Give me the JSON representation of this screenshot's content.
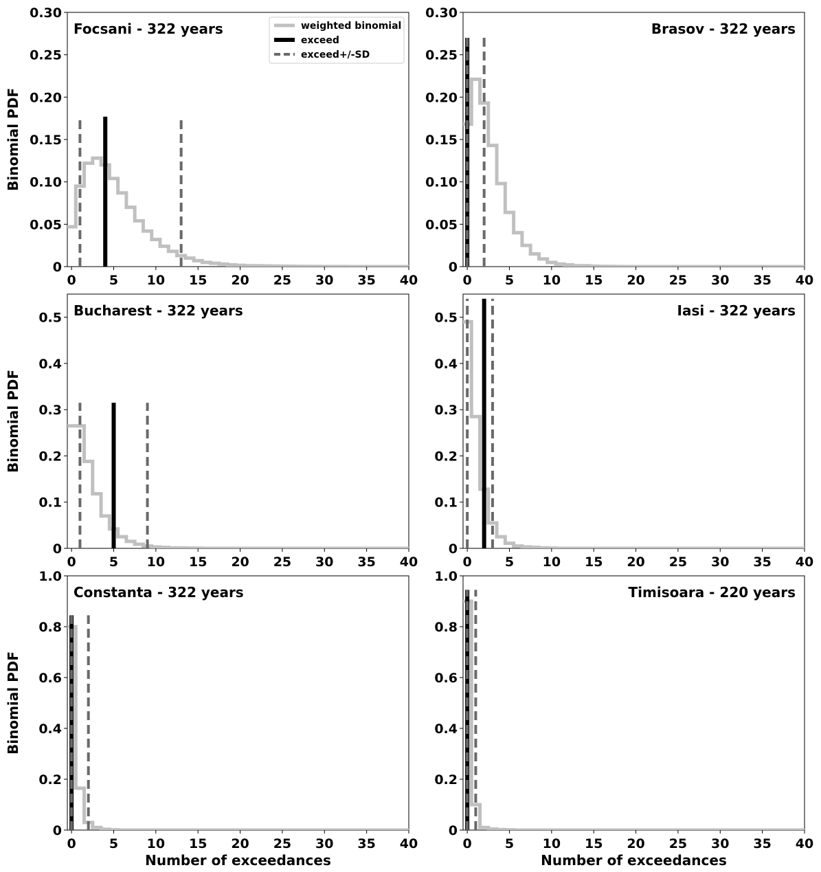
{
  "figure": {
    "ylabel": "Binomial PDF",
    "xlabel": "Number of exceedances"
  },
  "legend": {
    "entries": [
      {
        "label": "weighted binomial",
        "style": "solid",
        "color": "#c0c0c0"
      },
      {
        "label": "exceed",
        "style": "solid",
        "color": "#000000"
      },
      {
        "label": "exceed+/-SD",
        "style": "dashed",
        "color": "#696969"
      }
    ]
  },
  "colors": {
    "binomial": "#c0c0c0",
    "exceed": "#000000",
    "sd": "#696969"
  },
  "chart_data": [
    {
      "type": "line",
      "title": "Focsani - 322 years",
      "title_position": "top-left",
      "legend_position": "top-right",
      "xlabel": "",
      "ylabel": "Binomial PDF",
      "xlim": [
        -0.5,
        40
      ],
      "ylim": [
        0,
        0.3
      ],
      "xticks": [
        0,
        5,
        10,
        15,
        20,
        25,
        30,
        35,
        40
      ],
      "xtick_labels": [
        "0",
        "5",
        "10",
        "15",
        "20",
        "25",
        "30",
        "35",
        "40"
      ],
      "yticks": [
        0,
        0.05,
        0.1,
        0.15,
        0.2,
        0.25,
        0.3
      ],
      "ytick_labels": [
        "0",
        "0.05",
        "0.10",
        "0.15",
        "0.20",
        "0.25",
        "0.30"
      ],
      "series": [
        {
          "name": "weighted binomial",
          "style": "steps-mid",
          "x": [
            0,
            1,
            2,
            3,
            4,
            5,
            6,
            7,
            8,
            9,
            10,
            11,
            12,
            13,
            14,
            15,
            16,
            17,
            18,
            19,
            20,
            21,
            22,
            23,
            24,
            25,
            26,
            27,
            28,
            29,
            30,
            31,
            32,
            33,
            34,
            35,
            36,
            37,
            38,
            39,
            40
          ],
          "y": [
            0.047,
            0.095,
            0.122,
            0.128,
            0.12,
            0.104,
            0.087,
            0.07,
            0.054,
            0.042,
            0.032,
            0.024,
            0.018,
            0.013,
            0.01,
            0.007,
            0.005,
            0.004,
            0.003,
            0.002,
            0.0015,
            0.001,
            0.001,
            0.0008,
            0.0006,
            0.0005,
            0.0004,
            0.0003,
            0.0002,
            0.0002,
            0.0001,
            0.0001,
            0.0001,
            0,
            0,
            0,
            0,
            0,
            0,
            0,
            0
          ]
        },
        {
          "name": "exceed",
          "x": [
            4
          ],
          "y_top": 0.177
        },
        {
          "name": "exceed+/-SD",
          "x": [
            1,
            13
          ],
          "y_top": 0.174
        }
      ]
    },
    {
      "type": "line",
      "title": "Brasov - 322 years",
      "title_position": "top-right",
      "xlabel": "",
      "ylabel": "",
      "xlim": [
        -0.5,
        40
      ],
      "ylim": [
        0,
        0.3
      ],
      "xticks": [
        0,
        5,
        10,
        15,
        20,
        25,
        30,
        35,
        40
      ],
      "xtick_labels": [
        "0",
        "5",
        "10",
        "15",
        "20",
        "25",
        "30",
        "35",
        "40"
      ],
      "yticks": [
        0,
        0.05,
        0.1,
        0.15,
        0.2,
        0.25,
        0.3
      ],
      "ytick_labels": [
        "0",
        "0.05",
        "0.10",
        "0.15",
        "0.20",
        "0.25",
        "0.30"
      ],
      "series": [
        {
          "name": "weighted binomial",
          "style": "steps-mid",
          "x": [
            0,
            1,
            2,
            3,
            4,
            5,
            6,
            7,
            8,
            9,
            10,
            11,
            12,
            13,
            14,
            15,
            16,
            17,
            18,
            19,
            20,
            21,
            22,
            23,
            24,
            25,
            26,
            27,
            28,
            29,
            30,
            31,
            32,
            33,
            34,
            35,
            36,
            37,
            38,
            39,
            40
          ],
          "y": [
            0.168,
            0.221,
            0.193,
            0.143,
            0.098,
            0.064,
            0.04,
            0.025,
            0.015,
            0.009,
            0.005,
            0.003,
            0.002,
            0.001,
            0.001,
            0.0005,
            0.0003,
            0.0002,
            0.0001,
            0,
            0,
            0,
            0,
            0,
            0,
            0,
            0,
            0,
            0,
            0,
            0,
            0,
            0,
            0,
            0,
            0,
            0,
            0,
            0,
            0,
            0
          ]
        },
        {
          "name": "exceed",
          "x": [
            0
          ],
          "y_top": 0.27
        },
        {
          "name": "exceed+/-SD",
          "x": [
            0,
            2
          ],
          "y_top": 0.27
        }
      ]
    },
    {
      "type": "line",
      "title": "Bucharest - 322 years",
      "title_position": "top-left",
      "xlabel": "",
      "ylabel": "Binomial PDF",
      "xlim": [
        -0.5,
        40
      ],
      "ylim": [
        0,
        0.55
      ],
      "xticks": [
        0,
        5,
        10,
        15,
        20,
        25,
        30,
        35,
        40
      ],
      "xtick_labels": [
        "0",
        "5",
        "10",
        "15",
        "20",
        "25",
        "30",
        "35",
        "40"
      ],
      "yticks": [
        0,
        0.1,
        0.2,
        0.3,
        0.4,
        0.5
      ],
      "ytick_labels": [
        "0",
        "0.1",
        "0.2",
        "0.3",
        "0.4",
        "0.5"
      ],
      "series": [
        {
          "name": "weighted binomial",
          "style": "steps-mid",
          "x": [
            0,
            1,
            2,
            3,
            4,
            5,
            6,
            7,
            8,
            9,
            10,
            11,
            12,
            13,
            14,
            15,
            16,
            17,
            18,
            19,
            20,
            21,
            22,
            23,
            24,
            25,
            26,
            27,
            28,
            29,
            30,
            31,
            32,
            33,
            34,
            35,
            36,
            37,
            38,
            39,
            40
          ],
          "y": [
            0.265,
            0.265,
            0.188,
            0.118,
            0.07,
            0.042,
            0.025,
            0.015,
            0.009,
            0.005,
            0.003,
            0.002,
            0.001,
            0.001,
            0.0005,
            0.0003,
            0,
            0,
            0,
            0,
            0,
            0,
            0,
            0,
            0,
            0,
            0,
            0,
            0,
            0,
            0,
            0,
            0,
            0,
            0,
            0,
            0,
            0,
            0,
            0,
            0
          ]
        },
        {
          "name": "exceed",
          "x": [
            5
          ],
          "y_top": 0.315
        },
        {
          "name": "exceed+/-SD",
          "x": [
            1,
            9
          ],
          "y_top": 0.315
        }
      ]
    },
    {
      "type": "line",
      "title": "Iasi - 322 years",
      "title_position": "top-right",
      "xlabel": "",
      "ylabel": "",
      "xlim": [
        -0.5,
        40
      ],
      "ylim": [
        0,
        0.55
      ],
      "xticks": [
        0,
        5,
        10,
        15,
        20,
        25,
        30,
        35,
        40
      ],
      "xtick_labels": [
        "0",
        "5",
        "10",
        "15",
        "20",
        "25",
        "30",
        "35",
        "40"
      ],
      "yticks": [
        0,
        0.1,
        0.2,
        0.3,
        0.4,
        0.5
      ],
      "ytick_labels": [
        "0",
        "0.1",
        "0.2",
        "0.3",
        "0.4",
        "0.5"
      ],
      "series": [
        {
          "name": "weighted binomial",
          "style": "steps-mid",
          "x": [
            0,
            1,
            2,
            3,
            4,
            5,
            6,
            7,
            8,
            9,
            10,
            11,
            12,
            13,
            14,
            15,
            16,
            17,
            18,
            19,
            20,
            21,
            22,
            23,
            24,
            25,
            26,
            27,
            28,
            29,
            30,
            31,
            32,
            33,
            34,
            35,
            36,
            37,
            38,
            39,
            40
          ],
          "y": [
            0.49,
            0.285,
            0.128,
            0.055,
            0.025,
            0.011,
            0.005,
            0.003,
            0.002,
            0.001,
            0.0005,
            0,
            0,
            0,
            0,
            0,
            0,
            0,
            0,
            0,
            0,
            0,
            0,
            0,
            0,
            0,
            0,
            0,
            0,
            0,
            0,
            0,
            0,
            0,
            0,
            0,
            0,
            0,
            0,
            0,
            0
          ]
        },
        {
          "name": "exceed",
          "x": [
            2
          ],
          "y_top": 0.54
        },
        {
          "name": "exceed+/-SD",
          "x": [
            0,
            3
          ],
          "y_top": 0.54
        }
      ]
    },
    {
      "type": "line",
      "title": "Constanta - 322 years",
      "title_position": "top-left",
      "xlabel": "Number of exceedances",
      "ylabel": "Binomial PDF",
      "xlim": [
        -0.5,
        40
      ],
      "ylim": [
        0,
        1.0
      ],
      "xticks": [
        0,
        5,
        10,
        15,
        20,
        25,
        30,
        35,
        40
      ],
      "xtick_labels": [
        "0",
        "5",
        "10",
        "15",
        "20",
        "25",
        "30",
        "35",
        "40"
      ],
      "yticks": [
        0,
        0.2,
        0.4,
        0.6,
        0.8,
        1.0
      ],
      "ytick_labels": [
        "0",
        "0.2",
        "0.4",
        "0.6",
        "0.8",
        "1.0"
      ],
      "series": [
        {
          "name": "weighted binomial",
          "style": "steps-mid",
          "x": [
            0,
            1,
            2,
            3,
            4,
            5,
            6,
            7,
            8,
            9,
            10,
            11,
            12,
            13,
            14,
            15,
            16,
            17,
            18,
            19,
            20,
            21,
            22,
            23,
            24,
            25,
            26,
            27,
            28,
            29,
            30,
            31,
            32,
            33,
            34,
            35,
            36,
            37,
            38,
            39,
            40
          ],
          "y": [
            0.8,
            0.165,
            0.03,
            0.01,
            0.003,
            0.001,
            0,
            0,
            0,
            0,
            0,
            0,
            0,
            0,
            0,
            0,
            0,
            0,
            0,
            0,
            0,
            0,
            0,
            0,
            0,
            0,
            0,
            0,
            0,
            0,
            0,
            0,
            0,
            0,
            0,
            0,
            0,
            0,
            0,
            0,
            0
          ]
        },
        {
          "name": "exceed",
          "x": [
            0
          ],
          "y_top": 0.845
        },
        {
          "name": "exceed+/-SD",
          "x": [
            0,
            2
          ],
          "y_top": 0.845
        }
      ]
    },
    {
      "type": "line",
      "title": "Timisoara - 220 years",
      "title_position": "top-right",
      "xlabel": "Number of exceedances",
      "ylabel": "",
      "xlim": [
        -0.5,
        40
      ],
      "ylim": [
        0,
        1.0
      ],
      "xticks": [
        0,
        5,
        10,
        15,
        20,
        25,
        30,
        35,
        40
      ],
      "xtick_labels": [
        "0",
        "5",
        "10",
        "15",
        "20",
        "25",
        "30",
        "35",
        "40"
      ],
      "yticks": [
        0,
        0.2,
        0.4,
        0.6,
        0.8,
        1.0
      ],
      "ytick_labels": [
        "0",
        "0.2",
        "0.4",
        "0.6",
        "0.8",
        "1.0"
      ],
      "series": [
        {
          "name": "weighted binomial",
          "style": "steps-mid",
          "x": [
            0,
            1,
            2,
            3,
            4,
            5,
            6,
            7,
            8,
            9,
            10,
            11,
            12,
            13,
            14,
            15,
            16,
            17,
            18,
            19,
            20,
            21,
            22,
            23,
            24,
            25,
            26,
            27,
            28,
            29,
            30,
            31,
            32,
            33,
            34,
            35,
            36,
            37,
            38,
            39,
            40
          ],
          "y": [
            0.9,
            0.1,
            0.01,
            0.004,
            0.002,
            0.001,
            0,
            0,
            0,
            0,
            0,
            0,
            0,
            0,
            0,
            0,
            0,
            0,
            0,
            0,
            0,
            0,
            0,
            0,
            0,
            0,
            0,
            0,
            0,
            0,
            0,
            0,
            0,
            0,
            0,
            0,
            0,
            0,
            0,
            0,
            0
          ]
        },
        {
          "name": "exceed",
          "x": [
            0
          ],
          "y_top": 0.945
        },
        {
          "name": "exceed+/-SD",
          "x": [
            0,
            1
          ],
          "y_top": 0.945
        }
      ]
    }
  ]
}
